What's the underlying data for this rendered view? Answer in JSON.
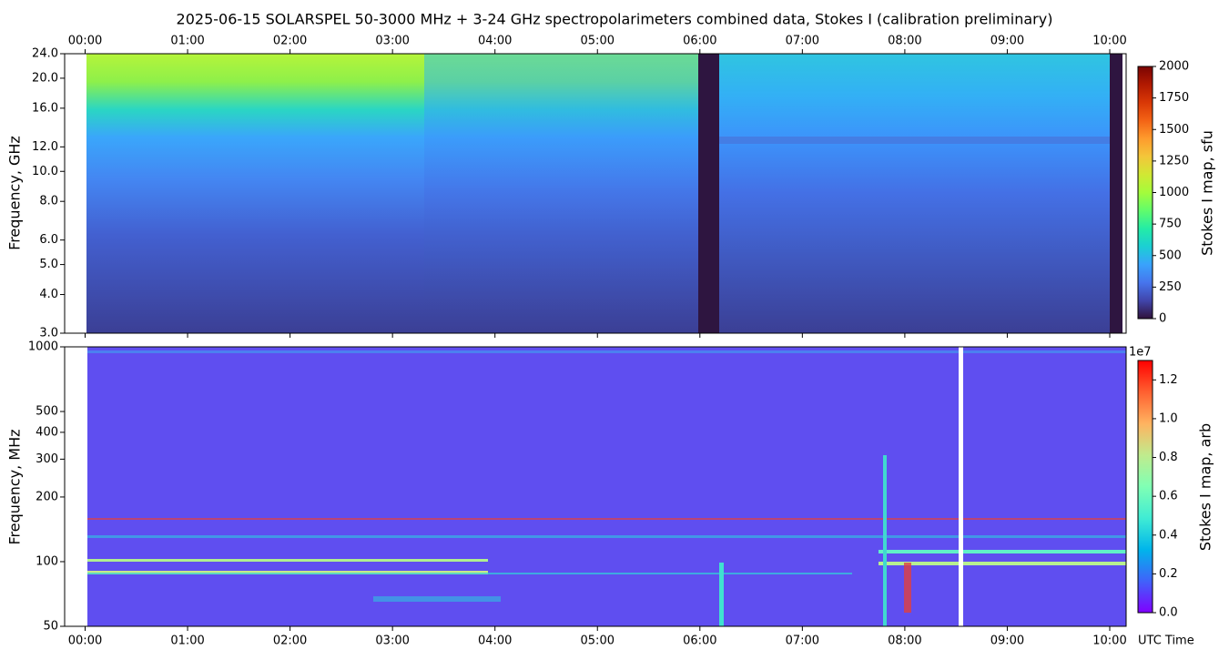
{
  "chart_data": [
    {
      "type": "heatmap",
      "title": "2025-06-15  SOLARSPEL  50-3000 MHz  +  3-24 GHz  spectropolarimeters combined data,  Stokes I  (calibration preliminary)",
      "ylabel": "Frequency, GHz",
      "yscale": "log",
      "ylim": [
        3,
        24
      ],
      "yticks": [
        {
          "value": 3,
          "label": "3.0"
        },
        {
          "value": 4,
          "label": "4.0"
        },
        {
          "value": 5,
          "label": "5.0"
        },
        {
          "value": 6,
          "label": "6.0"
        },
        {
          "value": 8,
          "label": "8.0"
        },
        {
          "value": 10,
          "label": "10.0"
        },
        {
          "value": 12,
          "label": "12.0"
        },
        {
          "value": 16,
          "label": "16.0"
        },
        {
          "value": 20,
          "label": "20.0"
        },
        {
          "value": 24,
          "label": "24.0"
        }
      ],
      "xlim": [
        -0.2,
        10.16
      ],
      "xaxis_position": "top",
      "xticks": [
        {
          "value": 0,
          "label": "00:00"
        },
        {
          "value": 1,
          "label": "01:00"
        },
        {
          "value": 2,
          "label": "02:00"
        },
        {
          "value": 3,
          "label": "03:00"
        },
        {
          "value": 4,
          "label": "04:00"
        },
        {
          "value": 5,
          "label": "05:00"
        },
        {
          "value": 6,
          "label": "06:00"
        },
        {
          "value": 7,
          "label": "07:00"
        },
        {
          "value": 8,
          "label": "08:00"
        },
        {
          "value": 9,
          "label": "09:00"
        },
        {
          "value": 10,
          "label": "10:00"
        }
      ],
      "colorbar": {
        "label": "Stokes I map, sfu",
        "lim": [
          0,
          2000
        ],
        "ticks": [
          0,
          250,
          500,
          750,
          1000,
          1250,
          1500,
          1750,
          2000
        ],
        "colormap": [
          "#30123b",
          "#4145ab",
          "#4675ed",
          "#39a2fc",
          "#1bcfd4",
          "#24eca6",
          "#61fc6c",
          "#a4fc3b",
          "#d1e834",
          "#f3c63a",
          "#fe9b2d",
          "#f36315",
          "#d93806",
          "#b11901",
          "#7a0403"
        ]
      }
    },
    {
      "type": "heatmap",
      "ylabel": "Frequency, MHz",
      "xlabel": "UTC Time",
      "yscale": "log",
      "ylim": [
        50,
        1000
      ],
      "yticks": [
        50,
        100,
        200,
        300,
        400,
        500,
        1000
      ],
      "xlim": [
        -0.2,
        10.16
      ],
      "xaxis_position": "bottom",
      "xticks": [
        {
          "value": 0,
          "label": "00:00"
        },
        {
          "value": 1,
          "label": "01:00"
        },
        {
          "value": 2,
          "label": "02:00"
        },
        {
          "value": 3,
          "label": "03:00"
        },
        {
          "value": 4,
          "label": "04:00"
        },
        {
          "value": 5,
          "label": "05:00"
        },
        {
          "value": 6,
          "label": "06:00"
        },
        {
          "value": 7,
          "label": "07:00"
        },
        {
          "value": 8,
          "label": "08:00"
        },
        {
          "value": 9,
          "label": "09:00"
        },
        {
          "value": 10,
          "label": "10:00"
        }
      ],
      "colorbar": {
        "label": "Stokes I map, arb",
        "offset_label": "1e7",
        "lim": [
          0,
          13000000
        ],
        "ticks": [
          {
            "value": 0,
            "label": "0.0"
          },
          {
            "value": 2000000,
            "label": "0.2"
          },
          {
            "value": 4000000,
            "label": "0.4"
          },
          {
            "value": 6000000,
            "label": "0.6"
          },
          {
            "value": 8000000,
            "label": "0.8"
          },
          {
            "value": 10000000,
            "label": "1.0"
          },
          {
            "value": 12000000,
            "label": "1.2"
          }
        ],
        "colormap": [
          "#8000ff",
          "#4062fa",
          "#00b5eb",
          "#40ecd4",
          "#80ffb4",
          "#c0eb8d",
          "#ffb360",
          "#ff6030",
          "#ff0000"
        ]
      }
    }
  ]
}
